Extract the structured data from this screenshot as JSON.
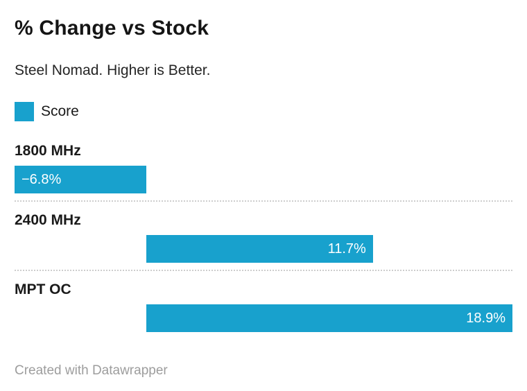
{
  "header": {
    "title": "% Change vs Stock",
    "subtitle": "Steel Nomad. Higher is Better."
  },
  "legend": {
    "label": "Score"
  },
  "chart_data": {
    "type": "bar",
    "orientation": "horizontal",
    "title": "% Change vs Stock",
    "subtitle": "Steel Nomad. Higher is Better.",
    "series_name": "Score",
    "categories": [
      "1800 MHz",
      "2400 MHz",
      "MPT OC"
    ],
    "values": [
      -6.8,
      11.7,
      18.9
    ],
    "value_labels": [
      "−6.8%",
      "11.7%",
      "18.9%"
    ],
    "xlim": [
      -6.8,
      18.9
    ],
    "unit": "%",
    "grid": false,
    "axis_visible": false,
    "legend_position": "top-left",
    "bar_color": "#18a1cd",
    "value_label_color": "#ffffff",
    "value_label_placement": "inside, right-aligned for positive, left-aligned for negative"
  },
  "footer": {
    "credit": "Created with Datawrapper"
  }
}
